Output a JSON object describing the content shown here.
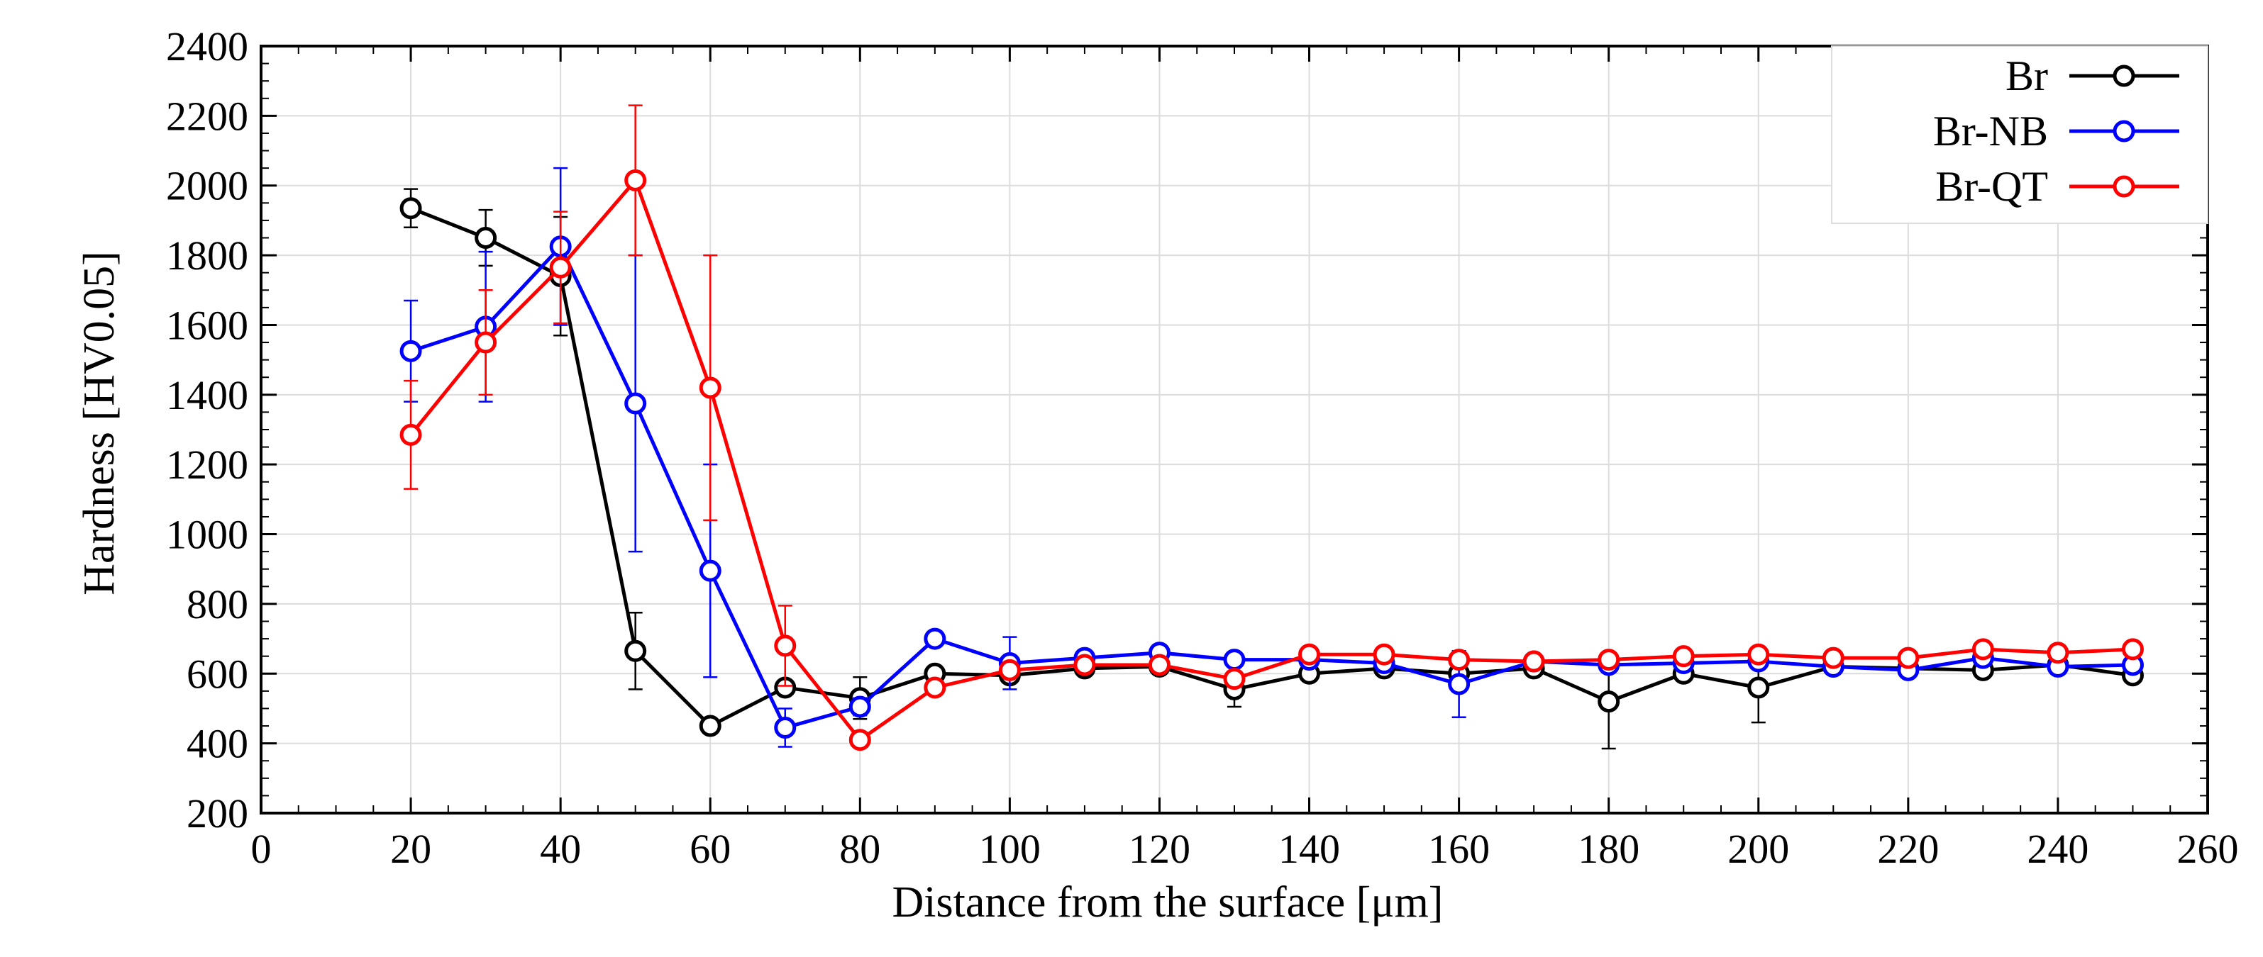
{
  "chart_data": {
    "type": "line",
    "title": "",
    "xlabel": "Distance from the surface [μm]",
    "ylabel": "Hardness [HV0.05]",
    "xlim": [
      0,
      260
    ],
    "ylim": [
      200,
      2400
    ],
    "xticks": [
      0,
      20,
      40,
      60,
      80,
      100,
      120,
      140,
      160,
      180,
      200,
      220,
      240,
      260
    ],
    "yticks": [
      200,
      400,
      600,
      800,
      1000,
      1200,
      1400,
      1600,
      1800,
      2000,
      2200,
      2400
    ],
    "x_tick_labels": [
      "0",
      "20",
      "40",
      "60",
      "80",
      "100",
      "120",
      "140",
      "160",
      "180",
      "200",
      "220",
      "240",
      "260"
    ],
    "y_tick_labels": [
      "200",
      "400",
      "600",
      "800",
      "1000",
      "1200",
      "1400",
      "1600",
      "1800",
      "2000",
      "2200",
      "2400"
    ],
    "grid": true,
    "legend_position": "top-right",
    "x": [
      20,
      30,
      40,
      50,
      60,
      70,
      80,
      90,
      100,
      110,
      120,
      130,
      140,
      150,
      160,
      170,
      180,
      190,
      200,
      210,
      220,
      230,
      240,
      250
    ],
    "series": [
      {
        "name": "Br",
        "color": "#000000",
        "values": [
          1935,
          1850,
          1740,
          665,
          450,
          560,
          530,
          600,
          595,
          615,
          620,
          555,
          600,
          615,
          600,
          615,
          520,
          600,
          560,
          620,
          615,
          610,
          625,
          595
        ],
        "errors": [
          55,
          80,
          170,
          110,
          0,
          0,
          60,
          0,
          20,
          0,
          0,
          50,
          0,
          0,
          0,
          0,
          135,
          0,
          100,
          0,
          0,
          0,
          0,
          0
        ]
      },
      {
        "name": "Br-NB",
        "color": "#0000ff",
        "values": [
          1525,
          1595,
          1825,
          1375,
          895,
          445,
          505,
          700,
          630,
          645,
          660,
          640,
          640,
          630,
          570,
          635,
          625,
          630,
          635,
          620,
          610,
          645,
          620,
          625
        ],
        "errors": [
          145,
          215,
          225,
          425,
          305,
          55,
          25,
          0,
          75,
          0,
          0,
          0,
          0,
          0,
          95,
          0,
          0,
          0,
          0,
          0,
          0,
          0,
          0,
          0
        ]
      },
      {
        "name": "Br-QT",
        "color": "#ff0000",
        "values": [
          1285,
          1550,
          1765,
          2015,
          1420,
          680,
          410,
          560,
          610,
          625,
          625,
          585,
          655,
          655,
          640,
          635,
          640,
          650,
          655,
          645,
          645,
          670,
          660,
          670
        ],
        "errors": [
          155,
          150,
          160,
          215,
          380,
          115,
          0,
          0,
          0,
          0,
          0,
          0,
          0,
          0,
          0,
          0,
          0,
          0,
          0,
          0,
          0,
          0,
          0,
          0
        ]
      }
    ]
  }
}
